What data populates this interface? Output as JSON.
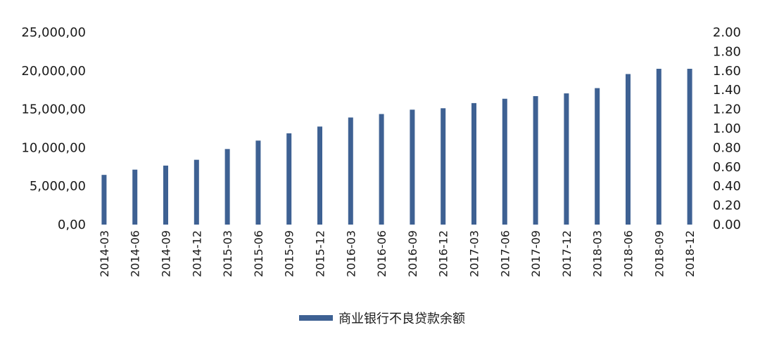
{
  "chart_data": {
    "type": "bar",
    "categories": [
      "2014-03",
      "2014-06",
      "2014-09",
      "2014-12",
      "2015-03",
      "2015-06",
      "2015-09",
      "2015-12",
      "2016-03",
      "2016-06",
      "2016-09",
      "2016-12",
      "2017-03",
      "2017-06",
      "2017-09",
      "2017-12",
      "2018-03",
      "2018-06",
      "2018-09",
      "2018-12"
    ],
    "series": [
      {
        "name": "商业银行不良贷款余额",
        "axis": "left",
        "color": "#3e6193",
        "values": [
          6461,
          7143,
          7669,
          8426,
          9825,
          10919,
          11863,
          12744,
          13921,
          14373,
          14939,
          15123,
          15795,
          16358,
          16702,
          17057,
          17742,
          19571,
          20254,
          20254
        ]
      }
    ],
    "y_left": {
      "lim": [
        0,
        25000
      ],
      "ticks": [
        0,
        5000,
        10000,
        15000,
        20000,
        25000
      ],
      "tick_labels": [
        "0,00",
        "5,000,00",
        "10,000,00",
        "15,000,00",
        "20,000,00",
        "25,000,00"
      ]
    },
    "y_right": {
      "lim": [
        0,
        2.0
      ],
      "ticks": [
        0,
        0.2,
        0.4,
        0.6,
        0.8,
        1.0,
        1.2,
        1.4,
        1.6,
        1.8,
        2.0
      ],
      "tick_labels": [
        "0.00",
        "0.20",
        "0.40",
        "0.60",
        "0.80",
        "1.00",
        "1.20",
        "1.40",
        "1.60",
        "1.80",
        "2.00"
      ]
    },
    "x_tick_rotation": "vertical",
    "grid": false,
    "legend_position": "bottom-center",
    "title": "",
    "xlabel": "",
    "ylabel": ""
  }
}
